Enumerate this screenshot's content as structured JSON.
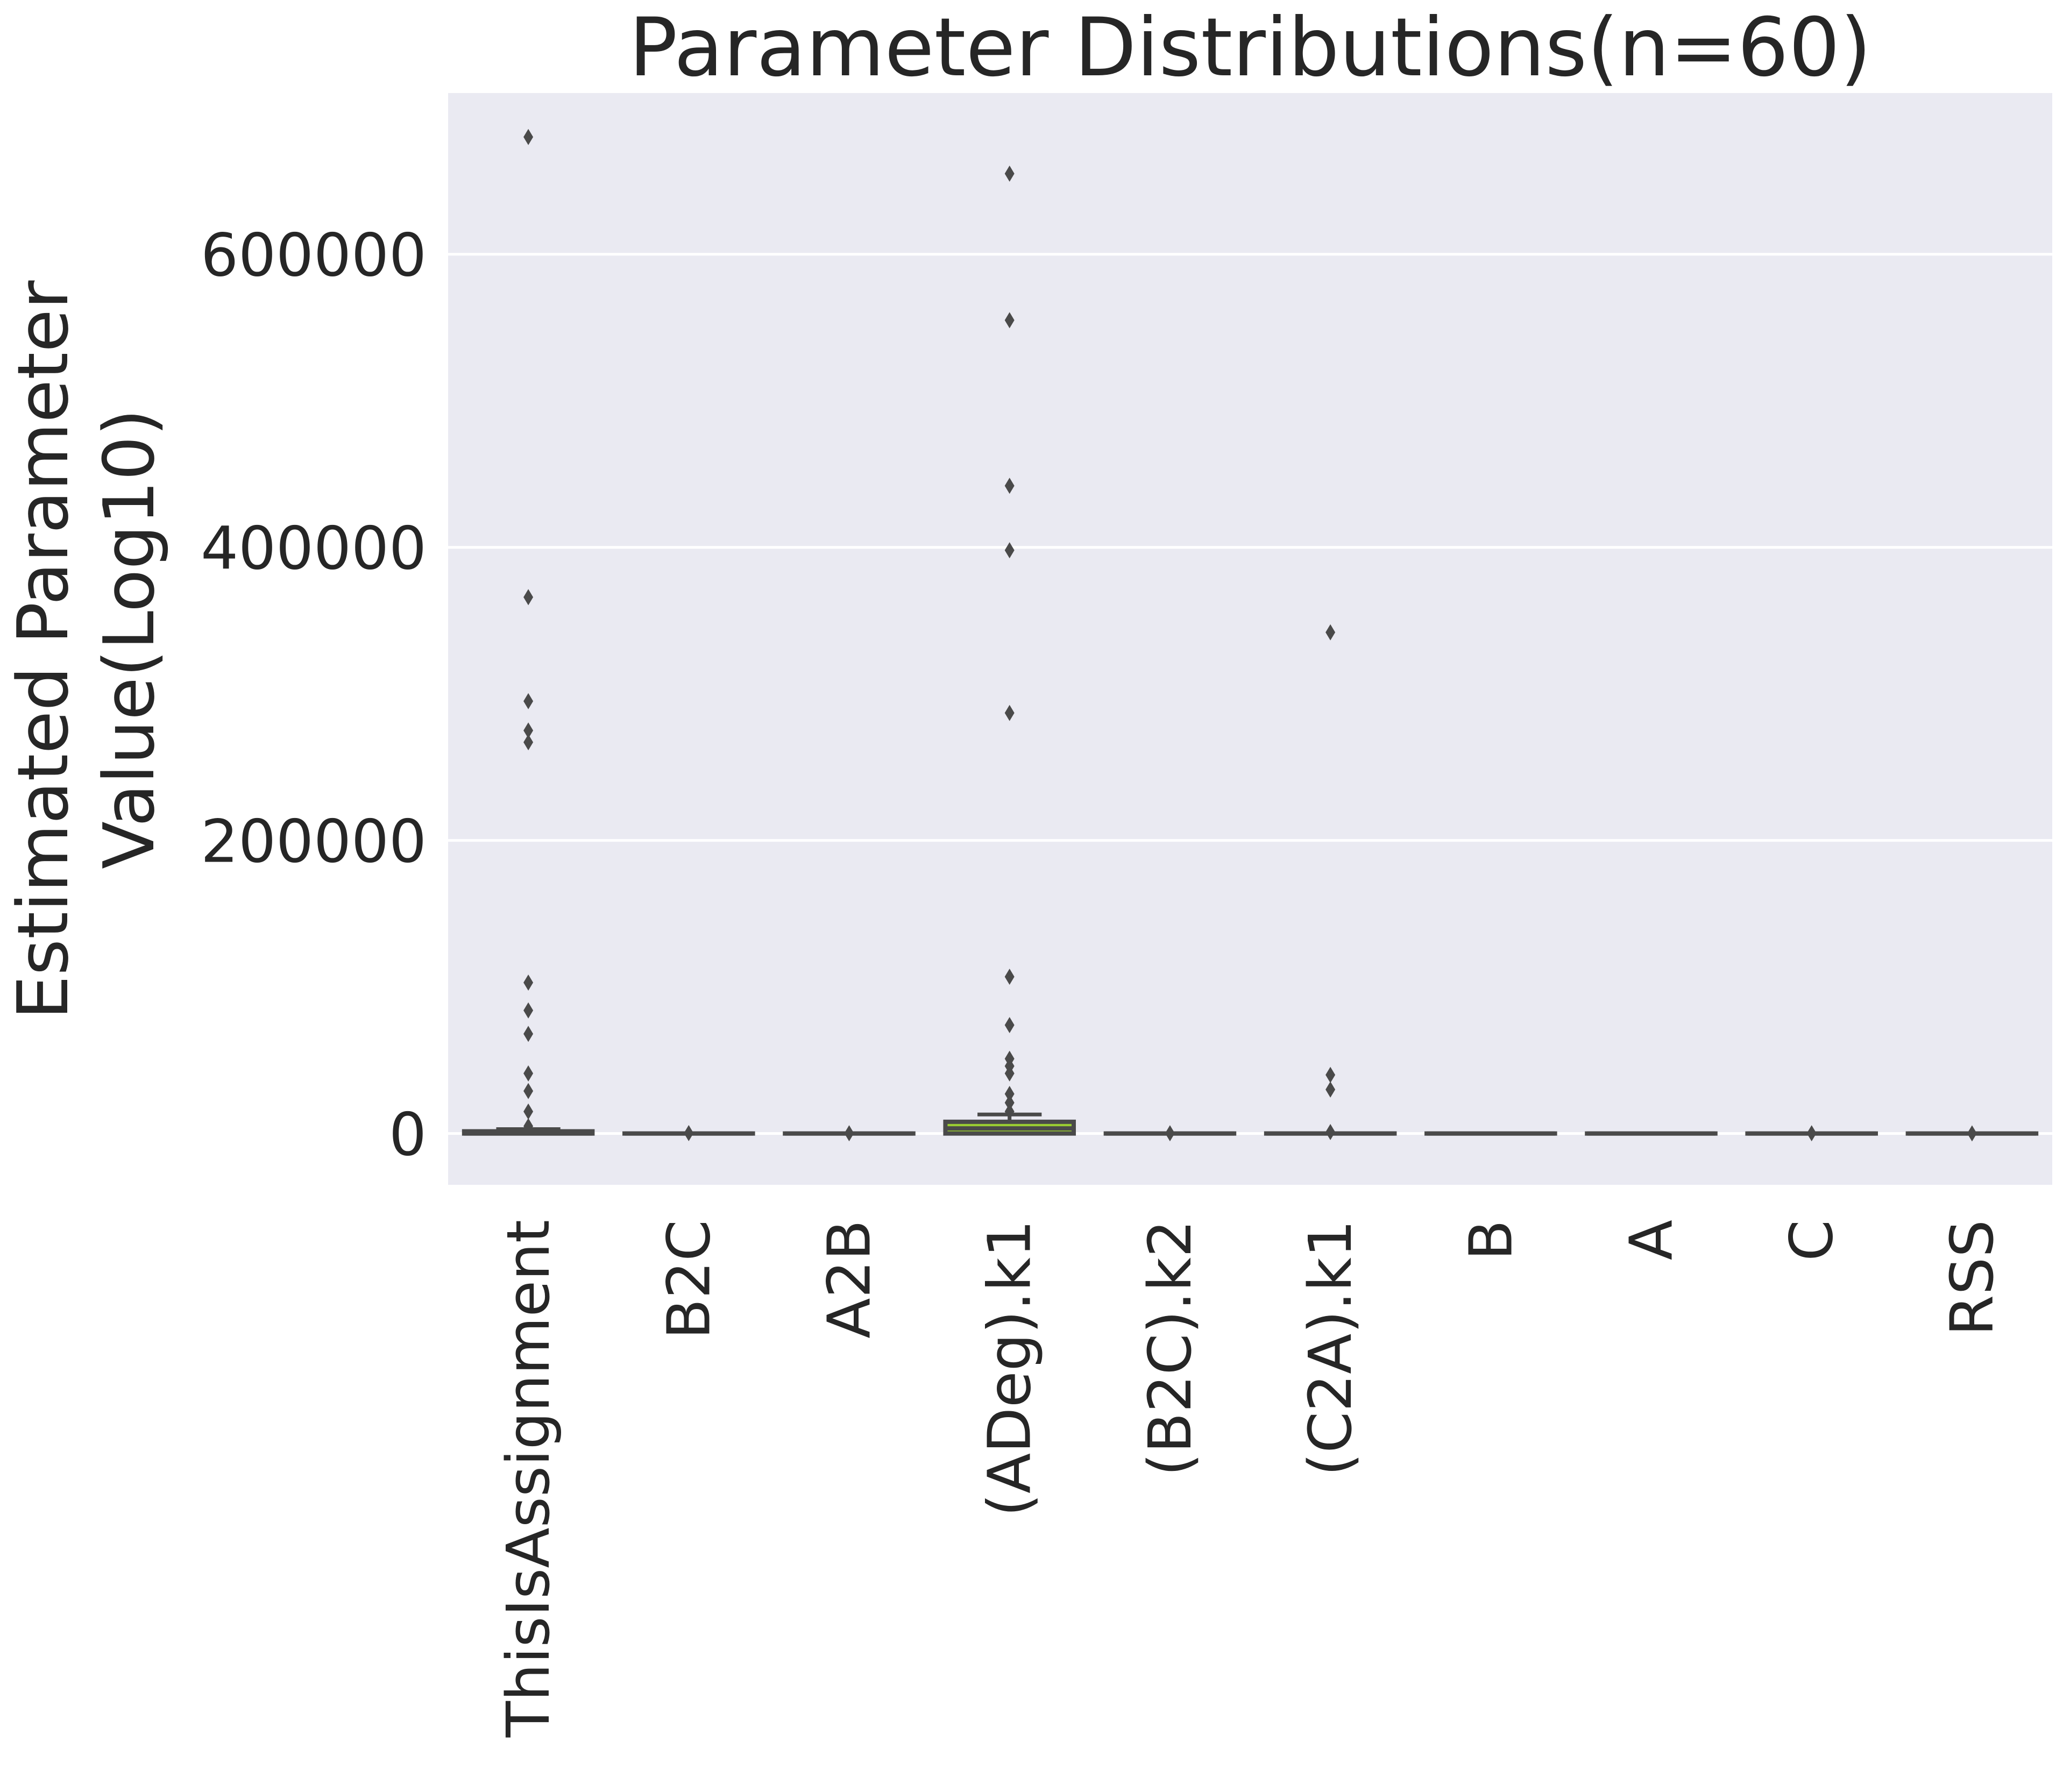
{
  "chart_data": {
    "type": "box",
    "title": "Parameter Distributions(n=60)",
    "xlabel": "",
    "ylabel_lines": [
      "Estimated Parameter",
      "Value(Log10)"
    ],
    "ylim": [
      -35000,
      710000
    ],
    "yticks": [
      0,
      200000,
      400000,
      600000
    ],
    "ytick_labels": [
      "0",
      "200000",
      "400000",
      "600000"
    ],
    "grid": true,
    "grid_axis": "y",
    "background_color": "#eaeaf2",
    "grid_color": "#ffffff",
    "box_edge_color": "#4a4a4a",
    "box_fill_color": "#9acd32",
    "categories": [
      "ThisIsAssignment",
      "B2C",
      "A2B",
      "(ADeg).k1",
      "(B2C).k2",
      "(C2A).k1",
      "B",
      "A",
      "C",
      "RSS"
    ],
    "boxes": [
      {
        "q1": 0,
        "median": 0,
        "q3": 1500,
        "whisker_low": 0,
        "whisker_high": 3000,
        "outliers": [
          680000,
          366000,
          295000,
          275000,
          267000,
          103000,
          84000,
          68000,
          41000,
          29000,
          15000,
          5000
        ]
      },
      {
        "q1": 0,
        "median": 0,
        "q3": 20,
        "whisker_low": 0,
        "whisker_high": 50,
        "outliers": [
          300
        ]
      },
      {
        "q1": 0,
        "median": 0,
        "q3": 20,
        "whisker_low": 0,
        "whisker_high": 50,
        "outliers": [
          200
        ]
      },
      {
        "q1": 0,
        "median": 3500,
        "q3": 8000,
        "whisker_low": 0,
        "whisker_high": 13000,
        "outliers": [
          655000,
          555000,
          442000,
          398000,
          287000,
          107000,
          74000,
          51000,
          46000,
          41000,
          27000,
          21000,
          15000
        ]
      },
      {
        "q1": 0,
        "median": 0,
        "q3": 20,
        "whisker_low": 0,
        "whisker_high": 50,
        "outliers": [
          200
        ]
      },
      {
        "q1": 0,
        "median": 0,
        "q3": 50,
        "whisker_low": 0,
        "whisker_high": 100,
        "outliers": [
          342000,
          40000,
          30000,
          1000
        ]
      },
      {
        "q1": 0,
        "median": 0,
        "q3": 10,
        "whisker_low": 0,
        "whisker_high": 20,
        "outliers": []
      },
      {
        "q1": 0,
        "median": 0,
        "q3": 10,
        "whisker_low": 0,
        "whisker_high": 20,
        "outliers": []
      },
      {
        "q1": 0,
        "median": 0,
        "q3": 10,
        "whisker_low": 0,
        "whisker_high": 20,
        "outliers": [
          200
        ]
      },
      {
        "q1": 0,
        "median": 0,
        "q3": 10,
        "whisker_low": 0,
        "whisker_high": 20,
        "outliers": [
          100
        ]
      }
    ]
  }
}
